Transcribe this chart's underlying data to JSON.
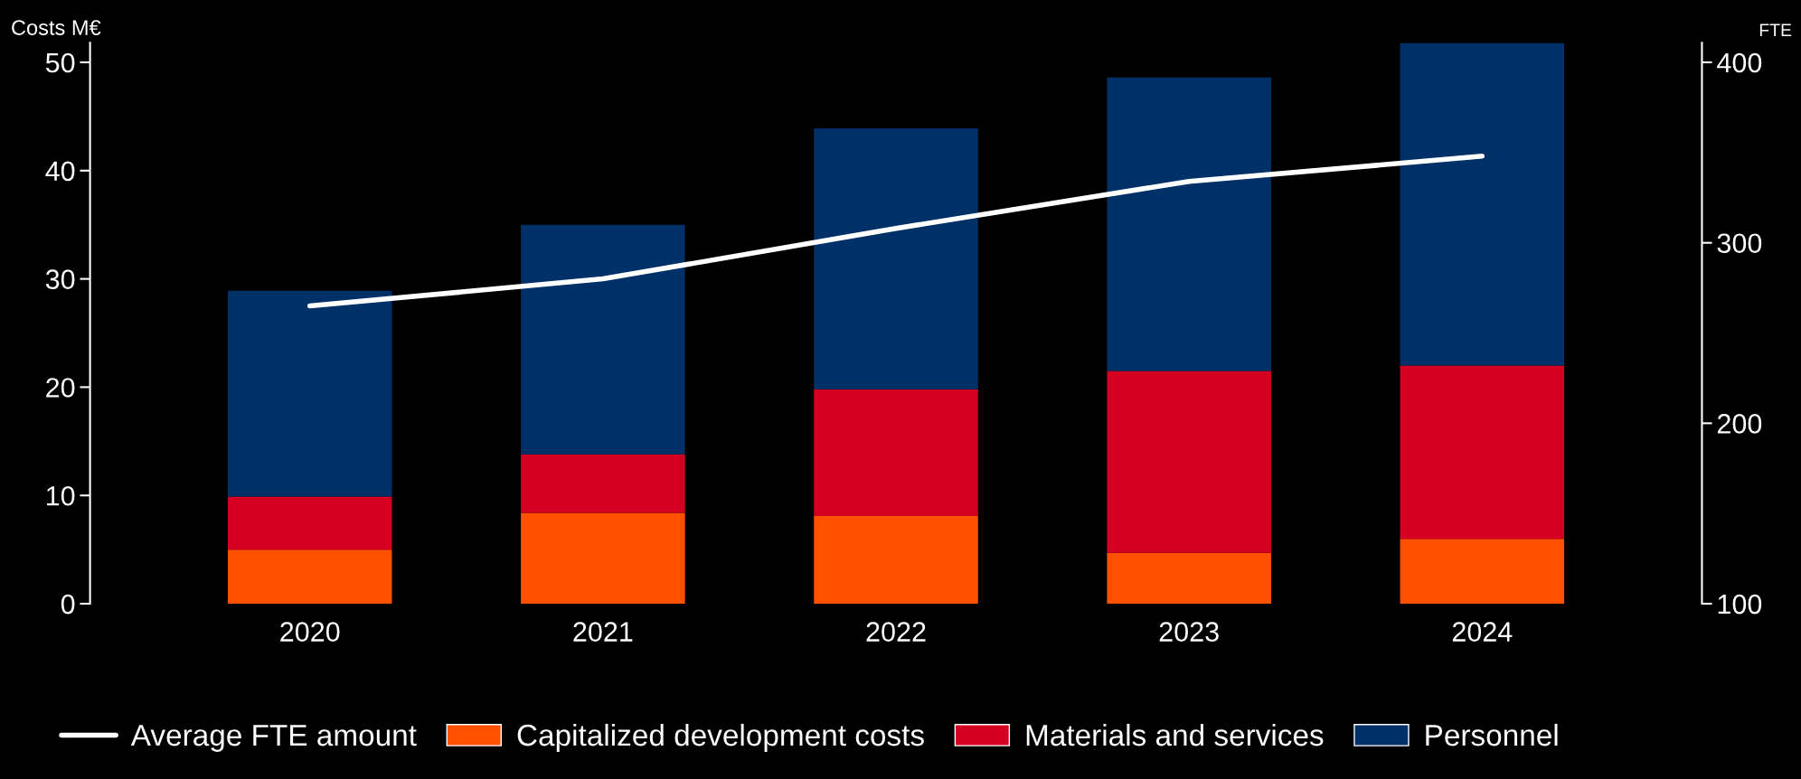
{
  "chart_data": {
    "type": "bar",
    "stacked": true,
    "ylabel": "Costs M€",
    "y2label": "FTE",
    "categories": [
      "2020",
      "2021",
      "2022",
      "2023",
      "2024"
    ],
    "series": [
      {
        "name": "Capitalized development costs",
        "color": "#ff5000",
        "values": [
          5.0,
          8.4,
          8.1,
          4.7,
          6.0
        ]
      },
      {
        "name": "Materials and services",
        "color": "#d50021",
        "values": [
          4.9,
          5.4,
          11.7,
          16.8,
          16.0
        ]
      },
      {
        "name": "Personnel",
        "color": "#003068",
        "values": [
          19.0,
          21.2,
          24.1,
          27.1,
          29.8
        ]
      },
      {
        "name": "Average FTE amount",
        "type": "line",
        "axis": "y2",
        "color": "#ffffff",
        "values": [
          265,
          280,
          308,
          334,
          348
        ]
      }
    ],
    "ylim": [
      0,
      51.8
    ],
    "yticks": [
      0,
      10,
      20,
      30,
      40,
      50
    ],
    "y2lim": [
      100,
      410.8
    ],
    "y2ticks": [
      100,
      200,
      300,
      400
    ],
    "grid": false,
    "legend": "bottom"
  }
}
